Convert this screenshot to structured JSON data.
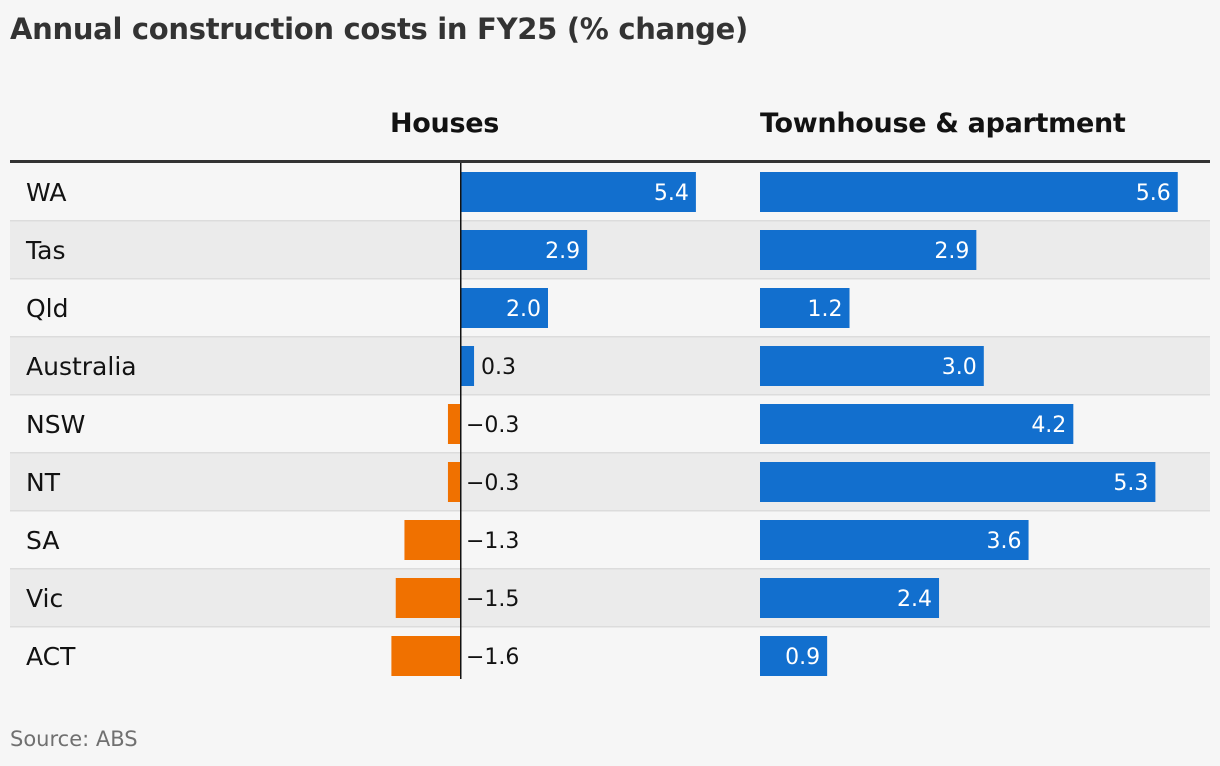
{
  "title": "Annual construction costs in FY25 (% change)",
  "source": "Source: ABS",
  "chart_data": {
    "type": "bar",
    "title": "Annual construction costs in FY25 (% change)",
    "categories": [
      "WA",
      "Tas",
      "Qld",
      "Australia",
      "NSW",
      "NT",
      "SA",
      "Vic",
      "ACT"
    ],
    "series": [
      {
        "name": "Houses",
        "values": [
          5.4,
          2.9,
          2.0,
          0.3,
          -0.3,
          -0.3,
          -1.3,
          -1.5,
          -1.6
        ],
        "labels": [
          "5.4",
          "2.9",
          "2.0",
          "0.3",
          "−0.3",
          "−0.3",
          "−1.3",
          "−1.5",
          "−1.6"
        ]
      },
      {
        "name": "Townhouse & apartment",
        "values": [
          5.6,
          2.9,
          1.2,
          3.0,
          4.2,
          5.3,
          3.6,
          2.4,
          0.9
        ],
        "labels": [
          "5.6",
          "2.9",
          "1.2",
          "3.0",
          "4.2",
          "5.3",
          "3.6",
          "2.4",
          "0.9"
        ]
      }
    ],
    "colors": {
      "positive": "#126fce",
      "negative": "#f07100",
      "row_alt": "#ebebeb"
    },
    "grid": false,
    "legend": "none"
  }
}
